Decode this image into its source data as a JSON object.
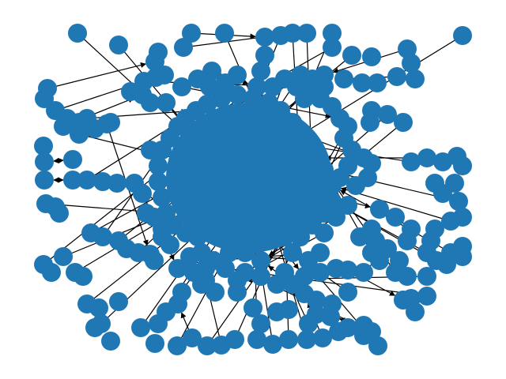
{
  "graph": {
    "type": "directed-network",
    "node_color": "#1f77b4",
    "edge_color": "#000000",
    "background_color": "#ffffff",
    "arrowheads": true,
    "labels_visible": false
  }
}
